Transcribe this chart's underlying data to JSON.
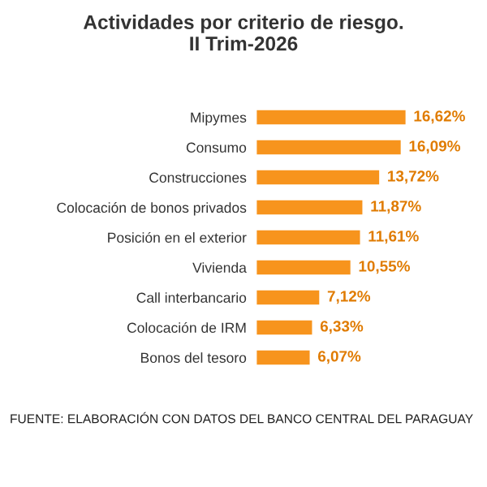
{
  "chart_data": {
    "type": "bar",
    "orientation": "horizontal",
    "title": "Actividades por criterio de riesgo.\nII Trim-2026",
    "categories": [
      "Mipymes",
      "Consumo",
      "Construcciones",
      "Colocación de bonos privados",
      "Posición en el exterior",
      "Vivienda",
      "Call interbancario",
      "Colocación de IRM",
      "Bonos del tesoro"
    ],
    "values": [
      16.62,
      16.09,
      13.72,
      11.87,
      11.61,
      10.55,
      7.12,
      6.33,
      6.07
    ],
    "value_labels": [
      "16,62%",
      "16,09%",
      "13,72%",
      "11,87%",
      "11,61%",
      "10,55%",
      "7,12%",
      "6,33%",
      "6,07%"
    ],
    "color": "#f7941d",
    "grid": false,
    "legend": false,
    "annotations": [
      "FUENTE: ELABORACIÓN CON DATOS DEL BANCO CENTRAL DEL PARAGUAY"
    ]
  }
}
